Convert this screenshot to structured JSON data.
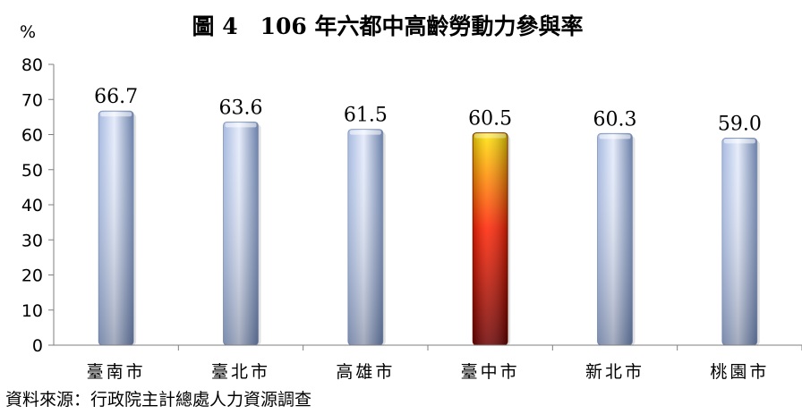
{
  "chart_data": {
    "type": "bar",
    "title": "圖 4　106 年六都中高齡勞動力參與率",
    "ylabel": "%",
    "xlabel": "",
    "categories": [
      "臺南市",
      "臺北市",
      "高雄市",
      "臺中市",
      "新北市",
      "桃園市"
    ],
    "values": [
      66.7,
      63.6,
      61.5,
      60.5,
      60.3,
      59.0
    ],
    "value_labels": [
      "66.7",
      "63.6",
      "61.5",
      "60.5",
      "60.3",
      "59.0"
    ],
    "ylim": [
      0,
      80
    ],
    "yticks": [
      "0",
      "10",
      "20",
      "30",
      "40",
      "50",
      "60",
      "70",
      "80"
    ],
    "highlight_category": "臺中市",
    "grid": false,
    "legend": "none",
    "colors": {
      "bar_light": "#e6ecfa",
      "bar_mid": "#a6b9df",
      "bar_dark": "#6a7fa8",
      "highlight_top": "#ffe600",
      "highlight_mid": "#ff2000",
      "highlight_bottom": "#6b0000"
    }
  },
  "source_note": "資料來源：行政院主計總處人力資源調查"
}
